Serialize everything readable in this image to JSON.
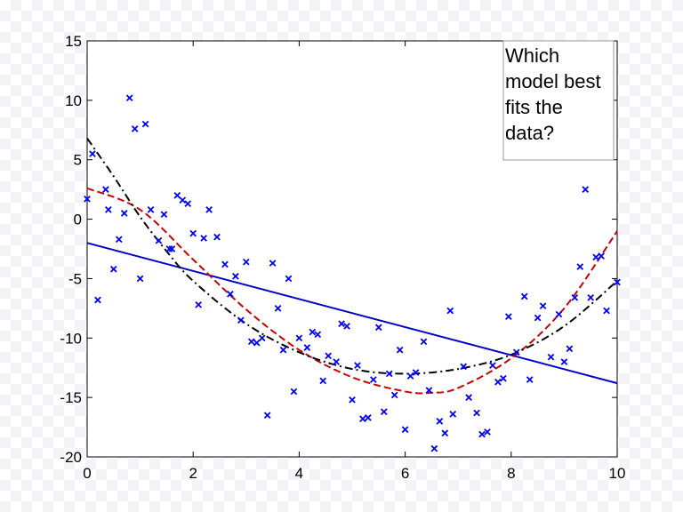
{
  "chart_data": {
    "type": "scatter",
    "xlim": [
      0,
      10
    ],
    "ylim": [
      -20,
      15
    ],
    "x_ticks": [
      "0",
      "2",
      "4",
      "6",
      "8",
      "10"
    ],
    "y_ticks": [
      "15",
      "10",
      "5",
      "0",
      "-5",
      "-10",
      "-15",
      "-20"
    ],
    "grid": false,
    "annotation": {
      "lines": [
        "Which",
        "model best",
        "fits the",
        "data?"
      ],
      "placement": "top-right"
    },
    "series": [
      {
        "kind": "points",
        "marker": "x",
        "color": "#0000ff",
        "points": [
          [
            0.0,
            1.7
          ],
          [
            0.1,
            5.5
          ],
          [
            0.2,
            -6.8
          ],
          [
            0.35,
            2.5
          ],
          [
            0.4,
            0.8
          ],
          [
            0.5,
            -4.2
          ],
          [
            0.6,
            -1.7
          ],
          [
            0.7,
            0.5
          ],
          [
            0.8,
            10.2
          ],
          [
            0.9,
            7.6
          ],
          [
            1.0,
            -5.0
          ],
          [
            1.1,
            8.0
          ],
          [
            1.2,
            0.8
          ],
          [
            1.35,
            -1.8
          ],
          [
            1.45,
            0.4
          ],
          [
            1.55,
            -2.5
          ],
          [
            1.6,
            -2.5
          ],
          [
            1.7,
            2.0
          ],
          [
            1.8,
            1.6
          ],
          [
            1.9,
            1.3
          ],
          [
            2.0,
            -1.2
          ],
          [
            2.1,
            -7.2
          ],
          [
            2.2,
            -1.6
          ],
          [
            2.3,
            0.8
          ],
          [
            2.45,
            -1.5
          ],
          [
            2.6,
            -3.8
          ],
          [
            2.7,
            -6.3
          ],
          [
            2.8,
            -4.8
          ],
          [
            2.9,
            -8.5
          ],
          [
            3.0,
            -3.6
          ],
          [
            3.1,
            -10.3
          ],
          [
            3.2,
            -10.4
          ],
          [
            3.3,
            -10.0
          ],
          [
            3.4,
            -16.5
          ],
          [
            3.5,
            -3.7
          ],
          [
            3.6,
            -7.5
          ],
          [
            3.7,
            -11.0
          ],
          [
            3.8,
            -5.0
          ],
          [
            3.9,
            -14.5
          ],
          [
            4.0,
            -10.0
          ],
          [
            4.15,
            -10.8
          ],
          [
            4.25,
            -9.5
          ],
          [
            4.35,
            -9.7
          ],
          [
            4.45,
            -13.6
          ],
          [
            4.55,
            -11.5
          ],
          [
            4.7,
            -12.0
          ],
          [
            4.8,
            -8.8
          ],
          [
            4.9,
            -9.0
          ],
          [
            5.0,
            -15.2
          ],
          [
            5.1,
            -12.3
          ],
          [
            5.2,
            -16.8
          ],
          [
            5.3,
            -16.7
          ],
          [
            5.4,
            -13.5
          ],
          [
            5.5,
            -9.1
          ],
          [
            5.6,
            -16.2
          ],
          [
            5.7,
            -13.0
          ],
          [
            5.8,
            -14.8
          ],
          [
            5.9,
            -11.0
          ],
          [
            6.0,
            -17.7
          ],
          [
            6.1,
            -13.2
          ],
          [
            6.2,
            -12.9
          ],
          [
            6.35,
            -10.3
          ],
          [
            6.45,
            -14.4
          ],
          [
            6.55,
            -19.3
          ],
          [
            6.65,
            -17.0
          ],
          [
            6.75,
            -18.0
          ],
          [
            6.85,
            -7.7
          ],
          [
            6.9,
            -16.4
          ],
          [
            7.1,
            -12.4
          ],
          [
            7.2,
            -15.0
          ],
          [
            7.35,
            -16.3
          ],
          [
            7.45,
            -18.1
          ],
          [
            7.55,
            -17.9
          ],
          [
            7.65,
            -12.3
          ],
          [
            7.75,
            -13.7
          ],
          [
            7.85,
            -13.4
          ],
          [
            7.95,
            -8.2
          ],
          [
            8.1,
            -11.2
          ],
          [
            8.25,
            -6.5
          ],
          [
            8.35,
            -13.5
          ],
          [
            8.5,
            -8.3
          ],
          [
            8.6,
            -7.3
          ],
          [
            8.75,
            -11.6
          ],
          [
            8.9,
            -8.0
          ],
          [
            9.0,
            -12.0
          ],
          [
            9.1,
            -10.9
          ],
          [
            9.2,
            -6.6
          ],
          [
            9.3,
            -4.0
          ],
          [
            9.4,
            2.5
          ],
          [
            9.5,
            -6.6
          ],
          [
            9.6,
            -3.2
          ],
          [
            9.7,
            -3.1
          ],
          [
            9.8,
            -7.7
          ],
          [
            10.0,
            -5.3
          ]
        ]
      },
      {
        "kind": "linear-fit",
        "color": "#0000cc",
        "style": "solid",
        "x": [
          0,
          10
        ],
        "y": [
          -2.0,
          -13.8
        ]
      },
      {
        "kind": "quadratic-fit",
        "color": "#cc0000",
        "style": "dashed",
        "x": [
          0.0,
          1.0,
          2.0,
          3.0,
          4.0,
          5.0,
          6.0,
          6.5,
          7.0,
          8.0,
          9.0,
          10.0
        ],
        "y": [
          2.6,
          0.8,
          -3.4,
          -7.6,
          -11.0,
          -13.3,
          -14.5,
          -14.6,
          -14.2,
          -11.7,
          -7.5,
          -1.0
        ]
      },
      {
        "kind": "cubic-fit",
        "color": "#000000",
        "style": "dash-dot",
        "x": [
          0.0,
          0.5,
          1.0,
          1.5,
          2.0,
          3.0,
          4.0,
          5.0,
          6.0,
          7.0,
          8.0,
          9.0,
          10.0
        ],
        "y": [
          6.8,
          3.6,
          0.2,
          -2.7,
          -5.2,
          -8.8,
          -11.2,
          -12.6,
          -13.0,
          -12.6,
          -11.4,
          -9.0,
          -5.2
        ]
      }
    ]
  }
}
